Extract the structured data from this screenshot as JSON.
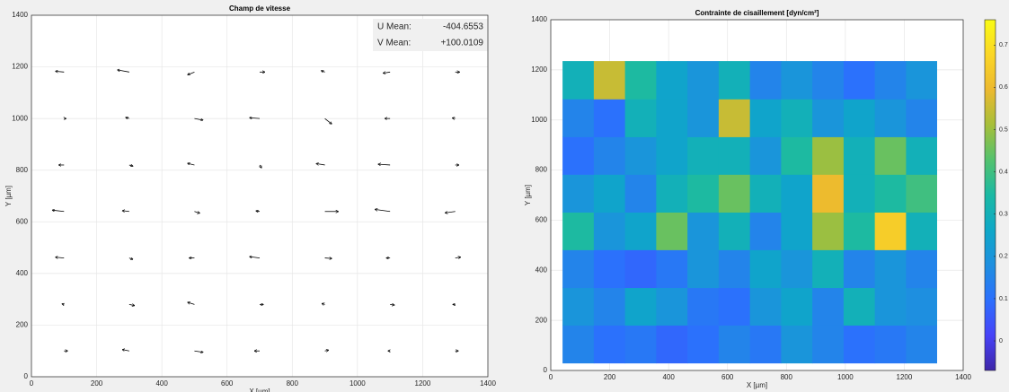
{
  "chart_data": [
    {
      "type": "quiver",
      "title": "Champ de vitesse",
      "x_label": "X [µm]",
      "y_label": "Y [µm]",
      "xlim": [
        0,
        1400
      ],
      "ylim": [
        0,
        1400
      ],
      "xticks": [
        0,
        200,
        400,
        600,
        800,
        1000,
        1200,
        1400
      ],
      "yticks": [
        0,
        200,
        400,
        600,
        800,
        1000,
        1200,
        1400
      ],
      "grid": true,
      "color": "#000000",
      "stats": [
        {
          "label": "U Mean:",
          "value": "-404.6553"
        },
        {
          "label": "V Mean:",
          "value": "+100.0109"
        }
      ],
      "x": [
        100,
        300,
        500,
        700,
        900,
        1100,
        1300,
        100,
        300,
        500,
        700,
        900,
        1100,
        1300,
        100,
        300,
        500,
        700,
        900,
        1100,
        1300,
        100,
        300,
        500,
        700,
        900,
        1100,
        1300,
        100,
        300,
        500,
        700,
        900,
        1100,
        1300,
        100,
        300,
        500,
        700,
        900,
        1100,
        1300,
        100,
        300,
        500,
        700,
        900,
        1100,
        1300
      ],
      "y": [
        100,
        100,
        100,
        100,
        100,
        100,
        100,
        280,
        280,
        280,
        280,
        280,
        280,
        280,
        460,
        460,
        460,
        460,
        460,
        460,
        460,
        640,
        640,
        640,
        640,
        640,
        640,
        640,
        820,
        820,
        820,
        820,
        820,
        820,
        820,
        1000,
        1000,
        1000,
        1000,
        1000,
        1000,
        1000,
        1180,
        1180,
        1180,
        1180,
        1180,
        1180,
        1180
      ],
      "u": [
        10,
        -20,
        25,
        -15,
        10,
        -5,
        8,
        -5,
        15,
        -20,
        10,
        -8,
        12,
        -6,
        -25,
        10,
        -15,
        -30,
        20,
        -10,
        15,
        -35,
        -20,
        15,
        -10,
        40,
        -45,
        -30,
        -15,
        10,
        -20,
        5,
        -25,
        -35,
        10,
        5,
        -10,
        25,
        -30,
        20,
        -15,
        -8,
        -25,
        -35,
        -20,
        15,
        -10,
        -20,
        12
      ],
      "v": [
        0,
        5,
        -5,
        0,
        3,
        0,
        0,
        2,
        -4,
        8,
        0,
        3,
        -2,
        0,
        3,
        -5,
        0,
        5,
        -2,
        0,
        3,
        5,
        3,
        -6,
        2,
        0,
        8,
        -5,
        0,
        -4,
        6,
        -10,
        5,
        3,
        0,
        0,
        4,
        -6,
        3,
        -20,
        0,
        2,
        3,
        8,
        -10,
        0,
        5,
        -4,
        0
      ]
    },
    {
      "type": "heatmap",
      "title": "Contrainte de cisaillement [dyn/cm²]",
      "x_label": "X [µm]",
      "y_label": "Y [µm]",
      "xlim": [
        0,
        1400
      ],
      "ylim": [
        0,
        1400
      ],
      "xticks": [
        0,
        200,
        400,
        600,
        800,
        1000,
        1200,
        1400
      ],
      "yticks": [
        0,
        200,
        400,
        600,
        800,
        1000,
        1200,
        1400
      ],
      "grid": true,
      "xbins": [
        40,
        146,
        252,
        358,
        464,
        570,
        676,
        782,
        888,
        994,
        1100,
        1206,
        1310
      ],
      "ybins": [
        30,
        181,
        331,
        482,
        632,
        783,
        933,
        1084,
        1235
      ],
      "z": [
        [
          0.15,
          0.1,
          0.12,
          0.08,
          0.1,
          0.15,
          0.12,
          0.2,
          0.15,
          0.1,
          0.12,
          0.15
        ],
        [
          0.2,
          0.15,
          0.25,
          0.2,
          0.12,
          0.1,
          0.2,
          0.25,
          0.15,
          0.3,
          0.2,
          0.18
        ],
        [
          0.15,
          0.1,
          0.08,
          0.12,
          0.2,
          0.15,
          0.25,
          0.2,
          0.3,
          0.15,
          0.2,
          0.15
        ],
        [
          0.35,
          0.2,
          0.25,
          0.45,
          0.2,
          0.3,
          0.15,
          0.25,
          0.5,
          0.35,
          0.65,
          0.3
        ],
        [
          0.2,
          0.25,
          0.15,
          0.3,
          0.35,
          0.45,
          0.3,
          0.25,
          0.6,
          0.3,
          0.35,
          0.4
        ],
        [
          0.1,
          0.15,
          0.2,
          0.25,
          0.3,
          0.3,
          0.2,
          0.35,
          0.5,
          0.3,
          0.45,
          0.3
        ],
        [
          0.15,
          0.1,
          0.3,
          0.25,
          0.2,
          0.55,
          0.25,
          0.3,
          0.2,
          0.25,
          0.2,
          0.15
        ],
        [
          0.3,
          0.55,
          0.35,
          0.25,
          0.2,
          0.3,
          0.15,
          0.2,
          0.15,
          0.1,
          0.15,
          0.2
        ]
      ],
      "clim": [
        -0.07,
        0.76
      ],
      "cticks": [
        0,
        0.1,
        0.2,
        0.3,
        0.4,
        0.5,
        0.6,
        0.7
      ],
      "colormap": [
        "#3e26a8",
        "#4743f8",
        "#2c6ffd",
        "#1e8fe0",
        "#0ea8c8",
        "#1ab9a4",
        "#53c26e",
        "#a6bf3a",
        "#ecb92f",
        "#fbd626",
        "#f9fb15"
      ]
    }
  ]
}
